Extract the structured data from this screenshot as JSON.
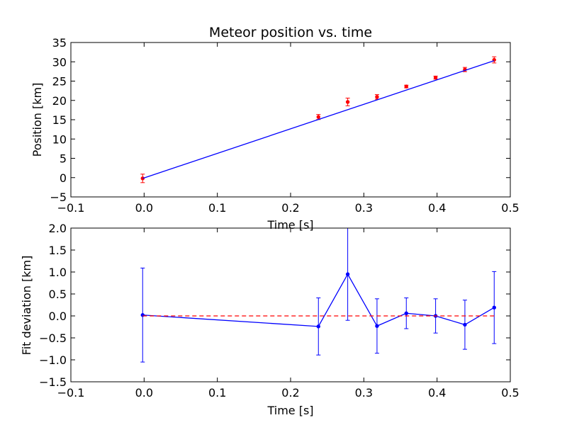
{
  "chart_data": [
    {
      "type": "scatter",
      "title": "Meteor position vs. time",
      "xlabel": "Time [s]",
      "ylabel": "Position [km]",
      "xlim": [
        -0.1,
        0.5
      ],
      "ylim": [
        -5,
        35
      ],
      "xticks": [
        -0.1,
        0.0,
        0.1,
        0.2,
        0.3,
        0.4,
        0.5
      ],
      "xtick_labels": [
        "−0.1",
        "0.0",
        "0.1",
        "0.2",
        "0.3",
        "0.4",
        "0.5"
      ],
      "yticks": [
        -5,
        0,
        5,
        10,
        15,
        20,
        25,
        30,
        35
      ],
      "ytick_labels": [
        "−5",
        "0",
        "5",
        "10",
        "15",
        "20",
        "25",
        "30",
        "35"
      ],
      "grid": false,
      "series": [
        {
          "kind": "errorbar-points",
          "color": "#ff0000",
          "errcolor": "#ff0000",
          "x": [
            -0.002,
            0.238,
            0.278,
            0.318,
            0.358,
            0.398,
            0.438,
            0.478
          ],
          "y": [
            -0.2,
            15.7,
            19.6,
            20.9,
            23.6,
            25.9,
            28.0,
            30.5
          ],
          "yerr": [
            1.1,
            0.65,
            1.0,
            0.6,
            0.35,
            0.4,
            0.55,
            0.8
          ]
        },
        {
          "kind": "fit-line",
          "color": "#0000ff",
          "x": [
            -0.002,
            0.478
          ],
          "y": [
            -0.2,
            30.3
          ]
        }
      ]
    },
    {
      "type": "line",
      "title": "",
      "xlabel": "Time [s]",
      "ylabel": "Fit deviation [km]",
      "xlim": [
        -0.1,
        0.5
      ],
      "ylim": [
        -1.5,
        2.0
      ],
      "xticks": [
        -0.1,
        0.0,
        0.1,
        0.2,
        0.3,
        0.4,
        0.5
      ],
      "xtick_labels": [
        "−0.1",
        "0.0",
        "0.1",
        "0.2",
        "0.3",
        "0.4",
        "0.5"
      ],
      "yticks": [
        -1.5,
        -1.0,
        -0.5,
        0.0,
        0.5,
        1.0,
        1.5,
        2.0
      ],
      "ytick_labels": [
        "−1.5",
        "−1.0",
        "−0.5",
        "0.0",
        "0.5",
        "1.0",
        "1.5",
        "2.0"
      ],
      "grid": false,
      "series": [
        {
          "kind": "errorbar-line",
          "color": "#0000ff",
          "x": [
            -0.002,
            0.238,
            0.278,
            0.318,
            0.358,
            0.398,
            0.438,
            0.478
          ],
          "y": [
            0.02,
            -0.24,
            0.95,
            -0.23,
            0.06,
            0.0,
            -0.2,
            0.19
          ],
          "yerr": [
            1.07,
            0.65,
            1.05,
            0.62,
            0.35,
            0.39,
            0.56,
            0.82
          ]
        },
        {
          "kind": "reference-dashed",
          "color": "#ff0000",
          "x": [
            -0.002,
            0.478
          ],
          "y": [
            0.0,
            0.0
          ]
        }
      ]
    }
  ]
}
